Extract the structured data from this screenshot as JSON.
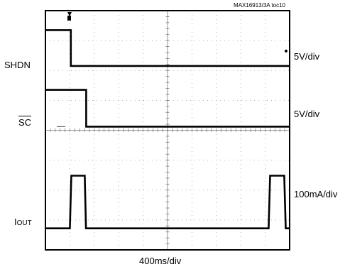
{
  "figure_tag": "MAX16913/3A toc10",
  "chart_data": {
    "type": "line",
    "title": "",
    "time_scale": "400ms/div",
    "xlabel": "400ms/div",
    "grid": true,
    "divisions": {
      "x": 10,
      "y": 8
    },
    "xlim": [
      0,
      10
    ],
    "x_unit": "div",
    "series": [
      {
        "name": "SHDN",
        "label_main": "SHDN",
        "label_sub": "",
        "overbar": false,
        "scale": "5V/div",
        "x": [
          0,
          1.04,
          1.04,
          10
        ],
        "y": [
          7.35,
          7.35,
          6.15,
          6.15
        ]
      },
      {
        "name": "SC",
        "label_main": "SC",
        "label_sub": "",
        "overbar": true,
        "scale": "5V/div",
        "x": [
          0,
          1.67,
          1.67,
          10
        ],
        "y": [
          5.35,
          5.35,
          4.12,
          4.12
        ]
      },
      {
        "name": "IOUT",
        "label_main": "I",
        "label_sub": "OUT",
        "overbar": false,
        "scale": "100mA/div",
        "x": [
          0,
          1.0,
          1.06,
          1.61,
          1.66,
          9.14,
          9.2,
          9.78,
          9.84,
          10
        ],
        "y": [
          0.72,
          0.72,
          2.48,
          2.48,
          0.72,
          0.72,
          2.48,
          2.48,
          0.72,
          0.72
        ]
      }
    ]
  }
}
